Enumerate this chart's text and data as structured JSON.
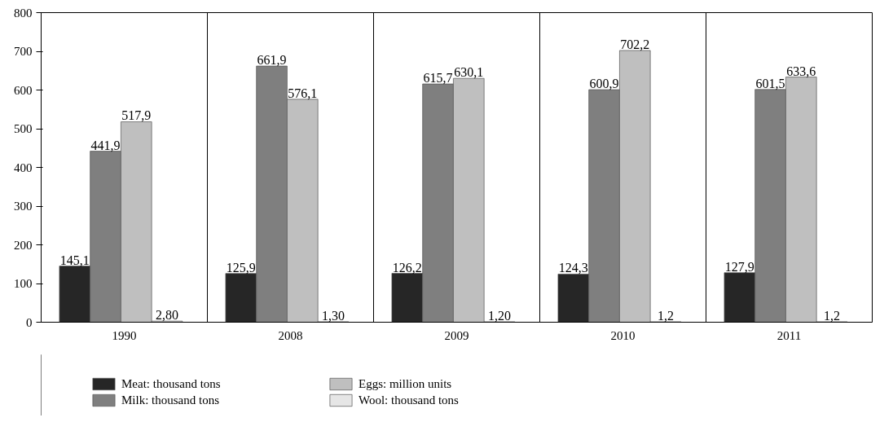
{
  "chart_data": {
    "type": "bar",
    "categories": [
      "1990",
      "2008",
      "2009",
      "2010",
      "2011"
    ],
    "series": [
      {
        "name": "Meat: thousand tons",
        "color": "#262626",
        "values": [
          145.1,
          125.9,
          126.2,
          124.3,
          127.9
        ],
        "value_labels": [
          "145,1",
          "125,9",
          "126,2",
          "124,3",
          "127,9"
        ]
      },
      {
        "name": "Milk: thousand tons",
        "color": "#7f7f7f",
        "values": [
          441.9,
          661.9,
          615.7,
          600.9,
          601.5
        ],
        "value_labels": [
          "441,9",
          "661,9",
          "615,7",
          "600,9",
          "601,5"
        ]
      },
      {
        "name": "Eggs: million units",
        "color": "#bfbfbf",
        "values": [
          517.9,
          576.1,
          630.1,
          702.2,
          633.6
        ],
        "value_labels": [
          "517,9",
          "576,1",
          "630,1",
          "702,2",
          "633,6"
        ]
      },
      {
        "name": "Wool: thousand tons",
        "color": "#e6e6e6",
        "values": [
          2.8,
          1.3,
          1.2,
          1.2,
          1.2
        ],
        "value_labels": [
          "2,80",
          "1,30",
          "1,20",
          "1,2",
          "1,2"
        ]
      }
    ],
    "ylim": [
      0,
      800
    ],
    "yticks": [
      0,
      100,
      200,
      300,
      400,
      500,
      600,
      700,
      800
    ],
    "grid": "x",
    "legend": "bottom"
  }
}
